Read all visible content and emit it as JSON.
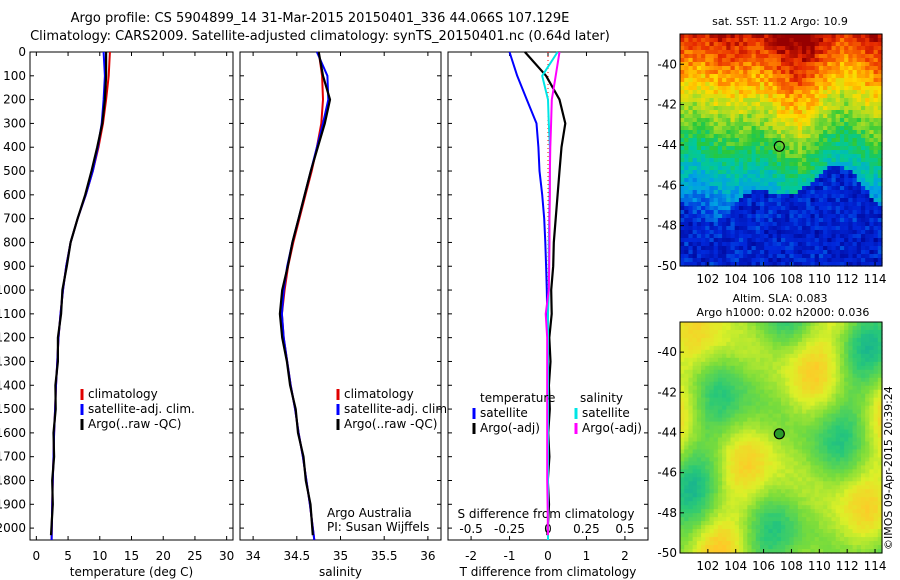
{
  "header": {
    "title_line1": "Argo profile: CS 5904899_14 31-Mar-2015 20150401_336 44.066S 107.129E",
    "title_line2": "Climatology: CARS2009. Satellite-adjusted climatology: synTS_20150401.nc (0.64d later)"
  },
  "credits": {
    "institution": "Argo Australia",
    "pi": "PI: Susan Wijffels",
    "watermark": "©IMOS 09-Apr-2015 20:39:24"
  },
  "colors": {
    "climatology": "#e00000",
    "satellite": "#0000ff",
    "argo": "#000000",
    "salinity_satellite": "#00e5e5",
    "salinity_argo": "#ff00ff",
    "reference": "#ff0000"
  },
  "chart_data": [
    {
      "type": "line",
      "panel": "temperature",
      "xlabel": "temperature (deg C)",
      "xlim": [
        -1,
        31
      ],
      "ylim": [
        2050,
        0
      ],
      "xticks": [
        0,
        5,
        10,
        15,
        20,
        25,
        30
      ],
      "yticks": [
        0,
        100,
        200,
        300,
        400,
        500,
        600,
        700,
        800,
        900,
        1000,
        1100,
        1200,
        1300,
        1400,
        1500,
        1600,
        1700,
        1800,
        1900,
        2000
      ],
      "legend": [
        "climatology",
        "satellite-adj. clim.",
        "Argo(..raw -QC)"
      ],
      "series": [
        {
          "name": "climatology",
          "key": "climatology",
          "x": [
            11.6,
            11.4,
            11.0,
            10.5,
            9.8,
            8.9,
            7.8,
            6.5,
            5.4,
            4.7,
            4.2,
            3.8,
            3.5,
            3.3,
            3.1,
            2.95,
            2.8,
            2.7,
            2.6,
            2.5,
            2.4
          ],
          "y": [
            0,
            100,
            200,
            300,
            400,
            500,
            600,
            700,
            800,
            900,
            1000,
            1100,
            1200,
            1300,
            1400,
            1500,
            1600,
            1700,
            1800,
            1900,
            2050
          ]
        },
        {
          "name": "satellite-adj. clim.",
          "key": "satellite",
          "x": [
            10.6,
            10.8,
            10.6,
            10.3,
            9.7,
            8.9,
            7.8,
            6.5,
            5.4,
            4.7,
            4.2,
            3.8,
            3.5,
            3.3,
            3.1,
            2.95,
            2.8,
            2.7,
            2.6,
            2.5,
            2.4
          ],
          "y": [
            0,
            100,
            200,
            300,
            400,
            500,
            600,
            700,
            800,
            900,
            1000,
            1100,
            1200,
            1300,
            1400,
            1500,
            1600,
            1700,
            1800,
            1900,
            2050
          ]
        },
        {
          "name": "Argo(..raw -QC)",
          "key": "argo",
          "x": [
            11.0,
            11.0,
            10.8,
            10.4,
            9.6,
            8.7,
            7.7,
            6.5,
            5.4,
            4.7,
            4.2,
            3.8,
            3.5,
            3.3,
            3.1,
            2.95,
            2.8,
            2.7,
            2.6,
            2.5,
            2.4
          ],
          "y": [
            0,
            100,
            200,
            300,
            400,
            500,
            600,
            700,
            800,
            900,
            1000,
            1100,
            1200,
            1300,
            1400,
            1500,
            1600,
            1700,
            1800,
            1900,
            2030
          ]
        }
      ]
    },
    {
      "type": "line",
      "panel": "salinity",
      "xlabel": "salinity",
      "xlim": [
        33.85,
        36.15
      ],
      "ylim": [
        2050,
        0
      ],
      "xticks": [
        34,
        34.5,
        35,
        35.5,
        36
      ],
      "legend": [
        "climatology",
        "satellite-adj. clim.",
        "Argo(..raw -QC)"
      ],
      "series": [
        {
          "name": "climatology",
          "key": "climatology",
          "x": [
            34.75,
            34.79,
            34.8,
            34.78,
            34.73,
            34.67,
            34.6,
            34.53,
            34.46,
            34.4,
            34.36,
            34.33,
            34.35,
            34.39,
            34.43,
            34.48,
            34.52,
            34.57,
            34.61,
            34.65,
            34.7
          ],
          "y": [
            0,
            100,
            200,
            300,
            400,
            500,
            600,
            700,
            800,
            900,
            1000,
            1100,
            1200,
            1300,
            1400,
            1500,
            1600,
            1700,
            1800,
            1900,
            2050
          ]
        },
        {
          "name": "satellite-adj. clim.",
          "key": "satellite",
          "x": [
            34.73,
            34.85,
            34.86,
            34.8,
            34.73,
            34.66,
            34.59,
            34.52,
            34.45,
            34.39,
            34.35,
            34.33,
            34.35,
            34.39,
            34.43,
            34.48,
            34.52,
            34.57,
            34.61,
            34.65,
            34.7
          ],
          "y": [
            0,
            100,
            200,
            300,
            400,
            500,
            600,
            700,
            800,
            900,
            1000,
            1100,
            1200,
            1300,
            1400,
            1500,
            1600,
            1700,
            1800,
            1900,
            2050
          ]
        },
        {
          "name": "Argo(..raw -QC)",
          "key": "argo",
          "x": [
            34.75,
            34.8,
            34.88,
            34.82,
            34.74,
            34.66,
            34.59,
            34.52,
            34.45,
            34.39,
            34.34,
            34.3,
            34.34,
            34.38,
            34.43,
            34.48,
            34.52,
            34.57,
            34.61,
            34.65,
            34.69
          ],
          "y": [
            0,
            100,
            200,
            300,
            400,
            500,
            600,
            700,
            800,
            900,
            1000,
            1100,
            1200,
            1300,
            1400,
            1500,
            1600,
            1700,
            1800,
            1900,
            2030
          ]
        }
      ]
    },
    {
      "type": "line",
      "panel": "difference",
      "xlabel": "T difference from climatology",
      "xlabel_top": "S difference from climatology",
      "xlim": [
        -2.6,
        2.6
      ],
      "ylim": [
        2050,
        0
      ],
      "xticks": [
        -2,
        -1,
        0,
        1,
        2
      ],
      "xticks_s": [
        -0.5,
        -0.25,
        0,
        0.25,
        0.5
      ],
      "legend_headers": [
        "temperature",
        "salinity"
      ],
      "legend": [
        "satellite",
        "Argo(-adj)",
        "satellite",
        "Argo(-adj)"
      ],
      "series": [
        {
          "name": "satellite",
          "key": "satellite",
          "x": [
            -1.0,
            -0.8,
            -0.55,
            -0.3,
            -0.25,
            -0.22,
            -0.15,
            -0.1,
            -0.07,
            -0.05,
            -0.03,
            -0.02,
            0,
            0,
            0,
            0,
            0,
            0,
            0,
            0,
            0
          ],
          "y": [
            0,
            100,
            200,
            300,
            400,
            500,
            600,
            700,
            800,
            900,
            1000,
            1100,
            1200,
            1300,
            1400,
            1500,
            1600,
            1700,
            1800,
            1900,
            2050
          ]
        },
        {
          "name": "Argo(-adj)",
          "key": "argo",
          "x": [
            -0.6,
            -0.05,
            0.3,
            0.45,
            0.35,
            0.3,
            0.25,
            0.2,
            0.15,
            0.12,
            0.1,
            0.08,
            0.05,
            0.05,
            0.04,
            0.03,
            0.02,
            0.02,
            0.01,
            0.01,
            0.0
          ],
          "y": [
            0,
            100,
            200,
            300,
            400,
            500,
            600,
            700,
            800,
            900,
            1000,
            1100,
            1200,
            1300,
            1400,
            1500,
            1600,
            1700,
            1800,
            1900,
            2030
          ]
        },
        {
          "name": "satellite",
          "key": "salinity_satellite",
          "x": [
            0.25,
            -0.15,
            0.0,
            0.02,
            0.05,
            0.05,
            0.04,
            0.03,
            0.02,
            0.02,
            0.02,
            0.0,
            0.0,
            0.0,
            0.0,
            0.0,
            0.0,
            0.0,
            0.0,
            0.0,
            0.0
          ],
          "y": [
            0,
            100,
            200,
            300,
            400,
            500,
            600,
            700,
            800,
            900,
            1000,
            1100,
            1200,
            1300,
            1400,
            1500,
            1600,
            1700,
            1800,
            1900,
            2050
          ]
        },
        {
          "name": "Argo(-adj)",
          "key": "salinity_argo",
          "x": [
            0.3,
            0.2,
            0.1,
            0.08,
            0.06,
            0.05,
            0.05,
            0.04,
            0.04,
            0.03,
            0.02,
            -0.06,
            -0.02,
            -0.02,
            -0.02,
            -0.02,
            -0.02,
            -0.02,
            -0.02,
            -0.01,
            0.0
          ],
          "y": [
            0,
            100,
            200,
            300,
            400,
            500,
            600,
            700,
            800,
            900,
            1000,
            1100,
            1200,
            1300,
            1400,
            1500,
            1600,
            1700,
            1800,
            1900,
            2030
          ]
        }
      ]
    },
    {
      "type": "heatmap",
      "panel": "sst_map",
      "title": "sat. SST: 11.2 Argo: 10.9",
      "xlim": [
        100,
        114.5
      ],
      "ylim": [
        -50,
        -38.5
      ],
      "xticks": [
        102,
        104,
        106,
        108,
        110,
        112,
        114
      ],
      "yticks": [
        -40,
        -42,
        -44,
        -46,
        -48,
        -50
      ],
      "marker": {
        "lon": 107.129,
        "lat": -44.066
      }
    },
    {
      "type": "heatmap",
      "panel": "sla_map",
      "title_line1": "Altim. SLA: 0.083",
      "title_line2": "Argo h1000: 0.02 h2000: 0.036",
      "xlim": [
        100,
        114.5
      ],
      "ylim": [
        -50,
        -38.5
      ],
      "xticks": [
        102,
        104,
        106,
        108,
        110,
        112,
        114
      ],
      "yticks": [
        -40,
        -42,
        -44,
        -46,
        -48,
        -50
      ],
      "marker": {
        "lon": 107.129,
        "lat": -44.066
      }
    }
  ]
}
